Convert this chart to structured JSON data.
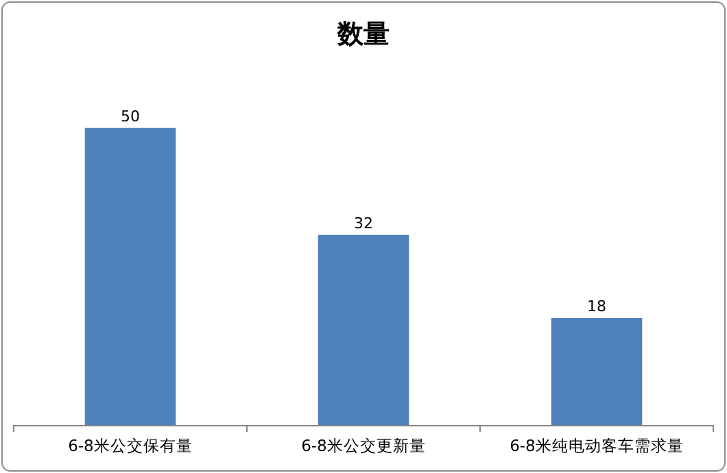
{
  "chart_data": {
    "type": "bar",
    "title": "数量",
    "categories": [
      "6-8米公交保有量",
      "6-8米公交更新量",
      "6-8米纯电动客车需求量"
    ],
    "values": [
      50,
      32,
      18
    ],
    "color": "#4f81bd",
    "data_labels": true
  }
}
